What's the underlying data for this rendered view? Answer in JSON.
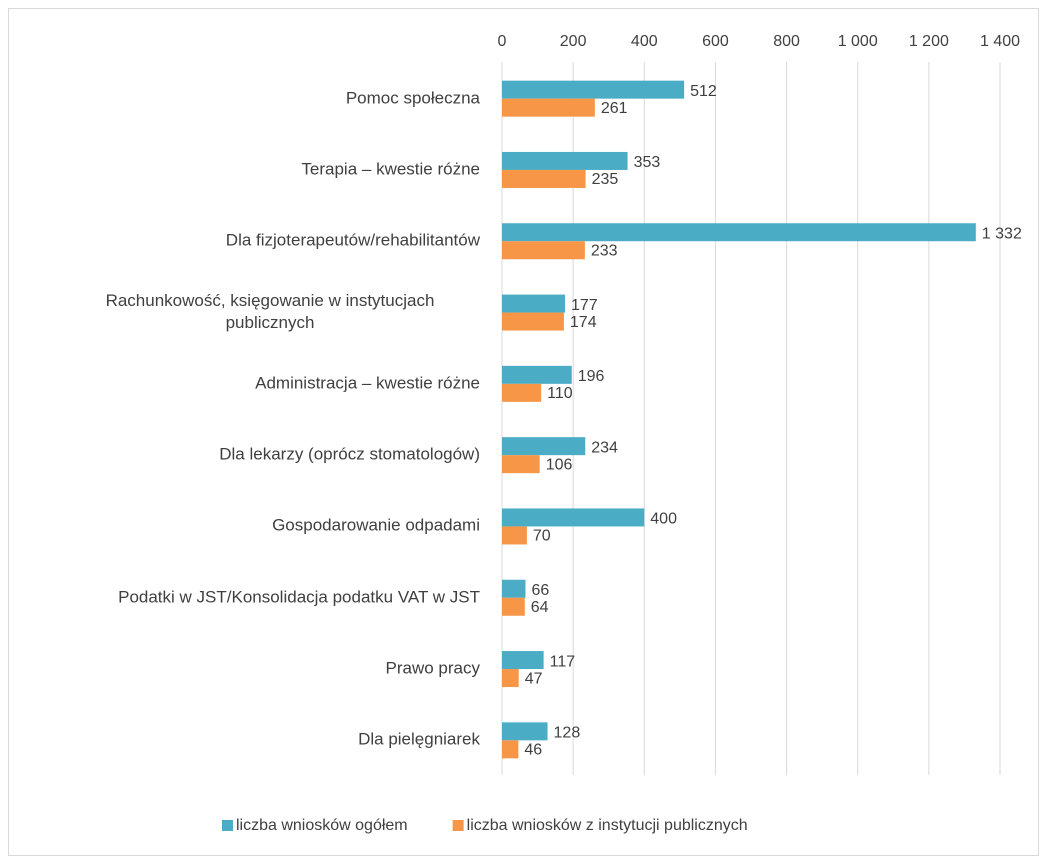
{
  "chart_data": {
    "type": "hbar",
    "categories": [
      "Pomoc społeczna",
      "Terapia – kwestie różne",
      "Dla fizjoterapeutów/rehabilitantów",
      "Rachunkowość, księgowanie w instytucjach publicznych",
      "Administracja – kwestie różne",
      "Dla lekarzy (oprócz stomatologów)",
      "Gospodarowanie odpadami",
      "Podatki w JST/Konsolidacja podatku VAT w JST",
      "Prawo pracy",
      "Dla pielęgniarek"
    ],
    "series": [
      {
        "name": "liczba wniosków ogółem",
        "color": "#4bacc6",
        "values": [
          512,
          353,
          1332,
          177,
          196,
          234,
          400,
          66,
          117,
          128
        ],
        "value_labels": [
          "512",
          "353",
          "1 332",
          "177",
          "196",
          "234",
          "400",
          "66",
          "117",
          "128"
        ]
      },
      {
        "name": "liczba wniosków z instytucji publicznych",
        "color": "#f79646",
        "values": [
          261,
          235,
          233,
          174,
          110,
          106,
          70,
          64,
          47,
          46
        ]
      }
    ],
    "xlim": [
      0,
      1400
    ],
    "xticks": [
      0,
      200,
      400,
      600,
      800,
      {
        "value": 1000,
        "label": "1 000"
      },
      {
        "value": 1200,
        "label": "1 200"
      },
      {
        "value": 1400,
        "label": "1 400"
      }
    ],
    "grid": true,
    "legend": "bottom"
  }
}
